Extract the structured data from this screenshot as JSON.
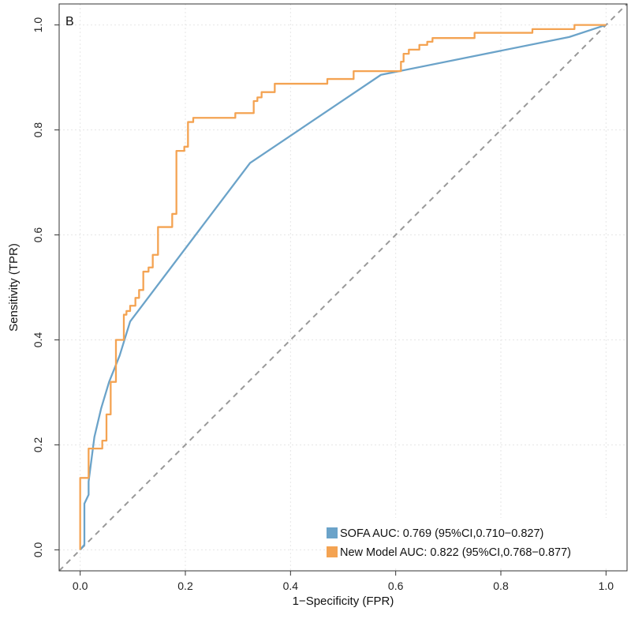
{
  "chart_data": {
    "type": "line",
    "panel_label": "B",
    "xlabel": "1−Specificity (FPR)",
    "ylabel": "Sensitivity (TPR)",
    "xlim": [
      -0.04,
      1.04
    ],
    "ylim": [
      -0.04,
      1.04
    ],
    "x_ticks": [
      0.0,
      0.2,
      0.4,
      0.6,
      0.8,
      1.0
    ],
    "y_ticks": [
      0.0,
      0.2,
      0.4,
      0.6,
      0.8,
      1.0
    ],
    "x_tick_labels": [
      "0.0",
      "0.2",
      "0.4",
      "0.6",
      "0.8",
      "1.0"
    ],
    "y_tick_labels": [
      "0.0",
      "0.2",
      "0.4",
      "0.6",
      "0.8",
      "1.0"
    ],
    "grid": true,
    "legend_position": "bottom-right",
    "diagonal": {
      "name": "reference",
      "color": "#999999",
      "style": "dashed",
      "x": [
        0,
        1
      ],
      "y": [
        0,
        1
      ]
    },
    "series": [
      {
        "name": "SOFA",
        "legend_label": "SOFA AUC: 0.769 (95%CI,0.710−0.827)",
        "color": "#6BA3C9",
        "x": [
          0.0,
          0.008,
          0.008,
          0.016,
          0.016,
          0.027,
          0.04,
          0.055,
          0.075,
          0.095,
          0.323,
          0.572,
          0.93,
          1.0
        ],
        "y": [
          0.0,
          0.01,
          0.088,
          0.105,
          0.13,
          0.215,
          0.27,
          0.32,
          0.37,
          0.435,
          0.737,
          0.905,
          0.977,
          1.0
        ]
      },
      {
        "name": "New Model",
        "legend_label": "New Model AUC: 0.822 (95%CI,0.768−0.877)",
        "color": "#F4A352",
        "x": [
          0.0,
          0.0,
          0.016,
          0.016,
          0.022,
          0.022,
          0.042,
          0.042,
          0.05,
          0.05,
          0.058,
          0.058,
          0.068,
          0.068,
          0.083,
          0.083,
          0.088,
          0.088,
          0.095,
          0.095,
          0.105,
          0.105,
          0.112,
          0.112,
          0.12,
          0.12,
          0.13,
          0.13,
          0.138,
          0.138,
          0.148,
          0.148,
          0.155,
          0.155,
          0.175,
          0.175,
          0.183,
          0.183,
          0.198,
          0.198,
          0.205,
          0.205,
          0.215,
          0.215,
          0.295,
          0.295,
          0.33,
          0.33,
          0.337,
          0.337,
          0.345,
          0.345,
          0.352,
          0.352,
          0.37,
          0.37,
          0.47,
          0.47,
          0.52,
          0.52,
          0.61,
          0.61,
          0.615,
          0.615,
          0.625,
          0.625,
          0.645,
          0.645,
          0.66,
          0.66,
          0.67,
          0.67,
          0.75,
          0.75,
          0.86,
          0.86,
          0.94,
          0.94,
          1.0
        ],
        "y": [
          0.0,
          0.137,
          0.137,
          0.193,
          0.193,
          0.193,
          0.193,
          0.208,
          0.208,
          0.258,
          0.258,
          0.32,
          0.32,
          0.4,
          0.4,
          0.448,
          0.448,
          0.455,
          0.455,
          0.465,
          0.465,
          0.48,
          0.48,
          0.495,
          0.495,
          0.53,
          0.53,
          0.538,
          0.538,
          0.562,
          0.562,
          0.615,
          0.615,
          0.615,
          0.615,
          0.64,
          0.64,
          0.76,
          0.76,
          0.768,
          0.768,
          0.815,
          0.815,
          0.823,
          0.823,
          0.832,
          0.832,
          0.855,
          0.855,
          0.862,
          0.862,
          0.872,
          0.872,
          0.872,
          0.872,
          0.888,
          0.888,
          0.897,
          0.897,
          0.912,
          0.912,
          0.93,
          0.93,
          0.945,
          0.945,
          0.953,
          0.953,
          0.962,
          0.962,
          0.968,
          0.968,
          0.975,
          0.975,
          0.985,
          0.985,
          0.992,
          0.992,
          1.0,
          1.0
        ]
      }
    ]
  }
}
